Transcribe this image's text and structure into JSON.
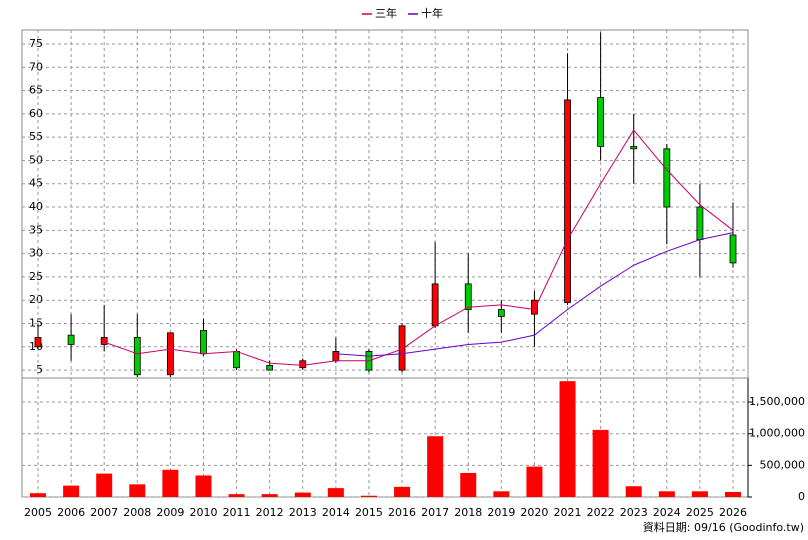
{
  "chart_data": {
    "type": "candlestick",
    "categories": [
      "2005",
      "2006",
      "2007",
      "2008",
      "2009",
      "2010",
      "2011",
      "2012",
      "2013",
      "2014",
      "2015",
      "2016",
      "2017",
      "2018",
      "2019",
      "2020",
      "2021",
      "2022",
      "2023",
      "2024",
      "2025",
      "2026"
    ],
    "open": [
      10,
      12.5,
      10.5,
      12,
      4,
      13.5,
      9,
      6,
      5.5,
      7,
      9,
      5,
      14.5,
      23.5,
      18,
      17,
      19.5,
      63.5,
      53,
      52.5,
      40,
      34
    ],
    "high": [
      15,
      17,
      19,
      17,
      13,
      16,
      9.5,
      7,
      7.5,
      12,
      9.5,
      15,
      32.5,
      30,
      20,
      22,
      73,
      77.5,
      60,
      53.5,
      45,
      41
    ],
    "low": [
      9.5,
      7,
      9,
      3.5,
      3.5,
      8,
      5,
      5,
      5,
      6.5,
      4.5,
      4.5,
      14,
      13,
      13,
      10,
      19,
      50,
      45,
      32,
      25,
      27
    ],
    "close": [
      12,
      10.5,
      12,
      4,
      13,
      8.5,
      5.5,
      5,
      7,
      9,
      5,
      14.5,
      23.5,
      18,
      16.5,
      20,
      63,
      53,
      52.5,
      40,
      33,
      28
    ],
    "up_color": "#ff0000",
    "down_color": "#00cc00",
    "series": [
      {
        "name": "三年",
        "color": "#cc0066",
        "values": [
          null,
          null,
          11,
          8.5,
          9.5,
          8.5,
          9,
          6.5,
          6,
          7,
          7,
          9.5,
          14.5,
          18.5,
          19,
          18,
          33,
          45,
          56.5,
          48,
          40.5,
          35
        ]
      },
      {
        "name": "十年",
        "color": "#6600cc",
        "values": [
          null,
          null,
          null,
          null,
          null,
          null,
          null,
          null,
          null,
          8.5,
          8,
          8.5,
          9.5,
          10.5,
          11,
          12.5,
          18,
          23,
          27.5,
          30.5,
          33,
          34.5
        ]
      }
    ],
    "volume": [
      60000,
      180000,
      370000,
      200000,
      430000,
      340000,
      45000,
      45000,
      70000,
      140000,
      20000,
      160000,
      960000,
      380000,
      90000,
      480000,
      1830000,
      1060000,
      170000,
      90000,
      90000,
      80000
    ],
    "volume_color": "#ff0000",
    "ylim": [
      3.3,
      78
    ],
    "yticks": [
      5,
      10,
      15,
      20,
      25,
      30,
      35,
      40,
      45,
      50,
      55,
      60,
      65,
      70,
      75
    ],
    "y2lim": [
      0,
      1880000
    ],
    "y2ticks": [
      0,
      {
        "value": 500000,
        "label": "500,000"
      },
      {
        "value": 1000000,
        "label": "1,000,000"
      },
      {
        "value": 1500000,
        "label": "1,500,000"
      }
    ],
    "grid": true,
    "source": "資料日期: 09/16 (Goodinfo.tw)"
  }
}
